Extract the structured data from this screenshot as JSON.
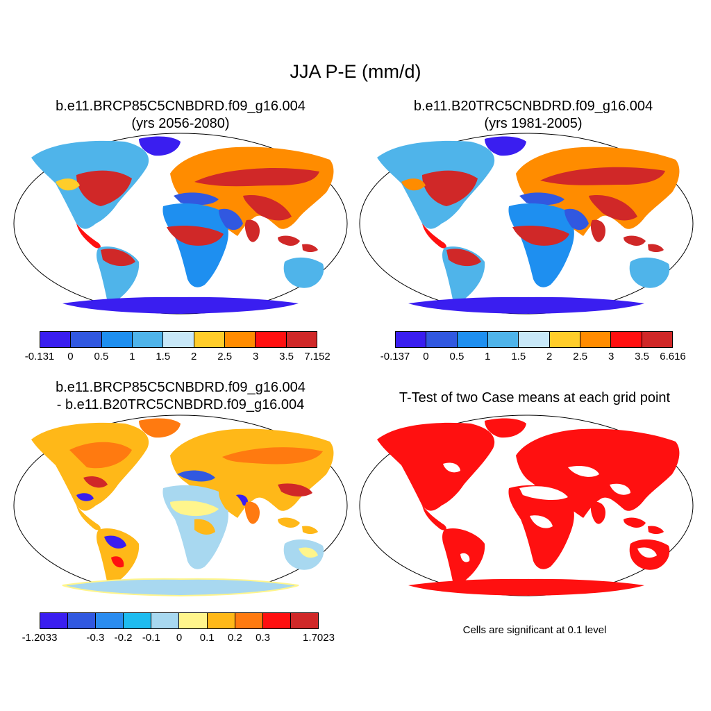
{
  "main_title": "JJA P-E (mm/d)",
  "panels": {
    "top_left": {
      "title_line1": "b.e11.BRCP85C5CNBDRD.f09_g16.004",
      "title_line2": "(yrs 2056-2080)",
      "colorbar": {
        "colors": [
          "#3a1ef0",
          "#3158e0",
          "#1e8ff0",
          "#4fb4ea",
          "#c8e8f8",
          "#ffcd2a",
          "#ff8c00",
          "#ff1010",
          "#d02828"
        ],
        "labels": [
          "-0.131",
          "0",
          "0.5",
          "1",
          "1.5",
          "2",
          "2.5",
          "3",
          "3.5",
          "7.152"
        ]
      }
    },
    "top_right": {
      "title_line1": "b.e11.B20TRC5CNBDRD.f09_g16.004",
      "title_line2": "(yrs 1981-2005)",
      "colorbar": {
        "colors": [
          "#3a1ef0",
          "#3158e0",
          "#1e8ff0",
          "#4fb4ea",
          "#c8e8f8",
          "#ffcd2a",
          "#ff8c00",
          "#ff1010",
          "#d02828"
        ],
        "labels": [
          "-0.137",
          "0",
          "0.5",
          "1",
          "1.5",
          "2",
          "2.5",
          "3",
          "3.5",
          "6.616"
        ]
      }
    },
    "bottom_left": {
      "title_line1": "b.e11.BRCP85C5CNBDRD.f09_g16.004",
      "title_line2": "- b.e11.B20TRC5CNBDRD.f09_g16.004",
      "colorbar": {
        "colors": [
          "#3a1ef0",
          "#3158e0",
          "#2a8cf0",
          "#1ebcf0",
          "#a8d8f0",
          "#fff58c",
          "#ffb818",
          "#ff7a10",
          "#ff1010",
          "#d02828"
        ],
        "labels": [
          "-1.2033",
          "-0.3",
          "-0.2",
          "-0.1",
          "0",
          "0.1",
          "0.2",
          "0.3",
          "1.7023"
        ]
      }
    },
    "bottom_right": {
      "title": "T-Test of two Case means at each grid point",
      "note": "Cells are significant at 0.1 level"
    }
  }
}
